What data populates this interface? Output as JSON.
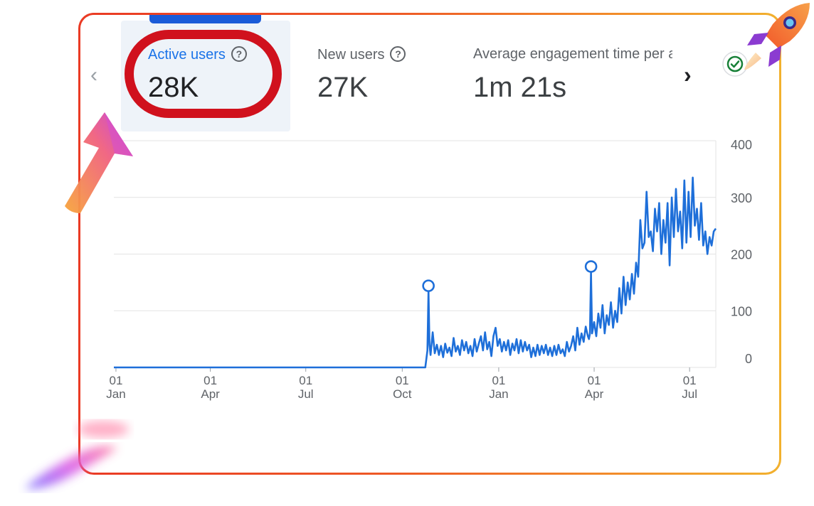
{
  "metrics": [
    {
      "label": "Active users",
      "value": "28K"
    },
    {
      "label": "New users",
      "value": "27K"
    },
    {
      "label": "Average engagement time per active user",
      "value": "1m 21s"
    }
  ],
  "icons": {
    "help": "question-circle-icon",
    "prev": "chevron-left-icon",
    "next": "chevron-right-icon",
    "status": "check-circle-icon"
  },
  "glyphs": {
    "help": "?",
    "prev": "‹",
    "next": "›"
  },
  "colors": {
    "accent": "#1a73e8",
    "line": "#1e6fd9",
    "highlight": "#d0111d",
    "frame_start": "#ea3a24",
    "frame_end": "#f2b12e",
    "grid": "#e3e3e3",
    "axis_text": "#5f6368"
  },
  "chart_data": {
    "type": "line",
    "title": "",
    "xlabel": "",
    "ylabel": "",
    "ylim": [
      0,
      400
    ],
    "y_ticks": [
      0,
      100,
      200,
      300,
      400
    ],
    "y_axis_side": "right",
    "grid": true,
    "legend": "none",
    "x_range": [
      "2022-12-30",
      "2024-07-26"
    ],
    "x_ticks": [
      {
        "date": "2023-01-01",
        "day": "01",
        "month": "Jan"
      },
      {
        "date": "2023-04-01",
        "day": "01",
        "month": "Apr"
      },
      {
        "date": "2023-07-01",
        "day": "01",
        "month": "Jul"
      },
      {
        "date": "2023-10-01",
        "day": "01",
        "month": "Oct"
      },
      {
        "date": "2024-01-01",
        "day": "01",
        "month": "Jan"
      },
      {
        "date": "2024-04-01",
        "day": "01",
        "month": "Apr"
      },
      {
        "date": "2024-07-01",
        "day": "01",
        "month": "Jul"
      }
    ],
    "series": [
      {
        "annotations": [
          {
            "date": "2023-10-26",
            "y": 134
          },
          {
            "date": "2024-03-29",
            "y": 168
          }
        ],
        "points": [
          [
            "2022-12-30",
            0
          ],
          [
            "2023-10-23",
            0
          ],
          [
            "2023-10-25",
            30
          ],
          [
            "2023-10-26",
            134
          ],
          [
            "2023-10-27",
            40
          ],
          [
            "2023-10-28",
            22
          ],
          [
            "2023-10-30",
            62
          ],
          [
            "2023-11-01",
            25
          ],
          [
            "2023-11-03",
            40
          ],
          [
            "2023-11-05",
            22
          ],
          [
            "2023-11-07",
            38
          ],
          [
            "2023-11-09",
            18
          ],
          [
            "2023-11-11",
            42
          ],
          [
            "2023-11-13",
            26
          ],
          [
            "2023-11-15",
            35
          ],
          [
            "2023-11-17",
            20
          ],
          [
            "2023-11-19",
            52
          ],
          [
            "2023-11-21",
            28
          ],
          [
            "2023-11-23",
            38
          ],
          [
            "2023-11-25",
            22
          ],
          [
            "2023-11-27",
            48
          ],
          [
            "2023-11-29",
            30
          ],
          [
            "2023-12-01",
            45
          ],
          [
            "2023-12-03",
            25
          ],
          [
            "2023-12-05",
            38
          ],
          [
            "2023-12-07",
            20
          ],
          [
            "2023-12-09",
            50
          ],
          [
            "2023-12-11",
            28
          ],
          [
            "2023-12-13",
            42
          ],
          [
            "2023-12-15",
            55
          ],
          [
            "2023-12-17",
            30
          ],
          [
            "2023-12-19",
            62
          ],
          [
            "2023-12-21",
            32
          ],
          [
            "2023-12-23",
            45
          ],
          [
            "2023-12-25",
            20
          ],
          [
            "2023-12-27",
            55
          ],
          [
            "2023-12-29",
            70
          ],
          [
            "2023-12-31",
            38
          ],
          [
            "2024-01-02",
            50
          ],
          [
            "2024-01-04",
            28
          ],
          [
            "2024-01-06",
            45
          ],
          [
            "2024-01-08",
            30
          ],
          [
            "2024-01-10",
            48
          ],
          [
            "2024-01-12",
            22
          ],
          [
            "2024-01-14",
            42
          ],
          [
            "2024-01-16",
            30
          ],
          [
            "2024-01-18",
            50
          ],
          [
            "2024-01-20",
            25
          ],
          [
            "2024-01-22",
            48
          ],
          [
            "2024-01-24",
            28
          ],
          [
            "2024-01-26",
            45
          ],
          [
            "2024-01-28",
            30
          ],
          [
            "2024-01-30",
            40
          ],
          [
            "2024-02-01",
            18
          ],
          [
            "2024-02-03",
            35
          ],
          [
            "2024-02-05",
            20
          ],
          [
            "2024-02-07",
            40
          ],
          [
            "2024-02-09",
            22
          ],
          [
            "2024-02-11",
            38
          ],
          [
            "2024-02-13",
            25
          ],
          [
            "2024-02-15",
            40
          ],
          [
            "2024-02-17",
            22
          ],
          [
            "2024-02-19",
            35
          ],
          [
            "2024-02-21",
            20
          ],
          [
            "2024-02-23",
            38
          ],
          [
            "2024-02-25",
            22
          ],
          [
            "2024-02-27",
            40
          ],
          [
            "2024-02-29",
            25
          ],
          [
            "2024-03-02",
            32
          ],
          [
            "2024-03-04",
            20
          ],
          [
            "2024-03-06",
            45
          ],
          [
            "2024-03-08",
            28
          ],
          [
            "2024-03-10",
            38
          ],
          [
            "2024-03-12",
            55
          ],
          [
            "2024-03-14",
            30
          ],
          [
            "2024-03-16",
            70
          ],
          [
            "2024-03-18",
            40
          ],
          [
            "2024-03-20",
            60
          ],
          [
            "2024-03-22",
            45
          ],
          [
            "2024-03-24",
            72
          ],
          [
            "2024-03-26",
            55
          ],
          [
            "2024-03-27",
            50
          ],
          [
            "2024-03-28",
            60
          ],
          [
            "2024-03-29",
            168
          ],
          [
            "2024-03-30",
            60
          ],
          [
            "2024-04-01",
            80
          ],
          [
            "2024-04-03",
            55
          ],
          [
            "2024-04-05",
            95
          ],
          [
            "2024-04-07",
            70
          ],
          [
            "2024-04-09",
            110
          ],
          [
            "2024-04-11",
            60
          ],
          [
            "2024-04-13",
            92
          ],
          [
            "2024-04-15",
            75
          ],
          [
            "2024-04-17",
            115
          ],
          [
            "2024-04-19",
            70
          ],
          [
            "2024-04-21",
            100
          ],
          [
            "2024-04-23",
            80
          ],
          [
            "2024-04-25",
            140
          ],
          [
            "2024-04-27",
            95
          ],
          [
            "2024-04-29",
            160
          ],
          [
            "2024-05-01",
            110
          ],
          [
            "2024-05-03",
            150
          ],
          [
            "2024-05-05",
            120
          ],
          [
            "2024-05-07",
            165
          ],
          [
            "2024-05-09",
            130
          ],
          [
            "2024-05-11",
            185
          ],
          [
            "2024-05-13",
            160
          ],
          [
            "2024-05-15",
            260
          ],
          [
            "2024-05-17",
            210
          ],
          [
            "2024-05-19",
            220
          ],
          [
            "2024-05-21",
            310
          ],
          [
            "2024-05-23",
            230
          ],
          [
            "2024-05-25",
            240
          ],
          [
            "2024-05-27",
            205
          ],
          [
            "2024-05-29",
            280
          ],
          [
            "2024-05-31",
            240
          ],
          [
            "2024-06-02",
            290
          ],
          [
            "2024-06-04",
            200
          ],
          [
            "2024-06-06",
            260
          ],
          [
            "2024-06-08",
            220
          ],
          [
            "2024-06-10",
            290
          ],
          [
            "2024-06-12",
            180
          ],
          [
            "2024-06-14",
            300
          ],
          [
            "2024-06-16",
            230
          ],
          [
            "2024-06-18",
            315
          ],
          [
            "2024-06-20",
            240
          ],
          [
            "2024-06-22",
            275
          ],
          [
            "2024-06-24",
            210
          ],
          [
            "2024-06-26",
            330
          ],
          [
            "2024-06-28",
            220
          ],
          [
            "2024-06-30",
            310
          ],
          [
            "2024-07-02",
            230
          ],
          [
            "2024-07-04",
            335
          ],
          [
            "2024-07-06",
            250
          ],
          [
            "2024-07-08",
            280
          ],
          [
            "2024-07-10",
            225
          ],
          [
            "2024-07-12",
            290
          ],
          [
            "2024-07-14",
            215
          ],
          [
            "2024-07-16",
            240
          ],
          [
            "2024-07-18",
            200
          ],
          [
            "2024-07-20",
            230
          ],
          [
            "2024-07-22",
            215
          ],
          [
            "2024-07-24",
            240
          ],
          [
            "2024-07-26",
            245
          ]
        ]
      }
    ]
  }
}
